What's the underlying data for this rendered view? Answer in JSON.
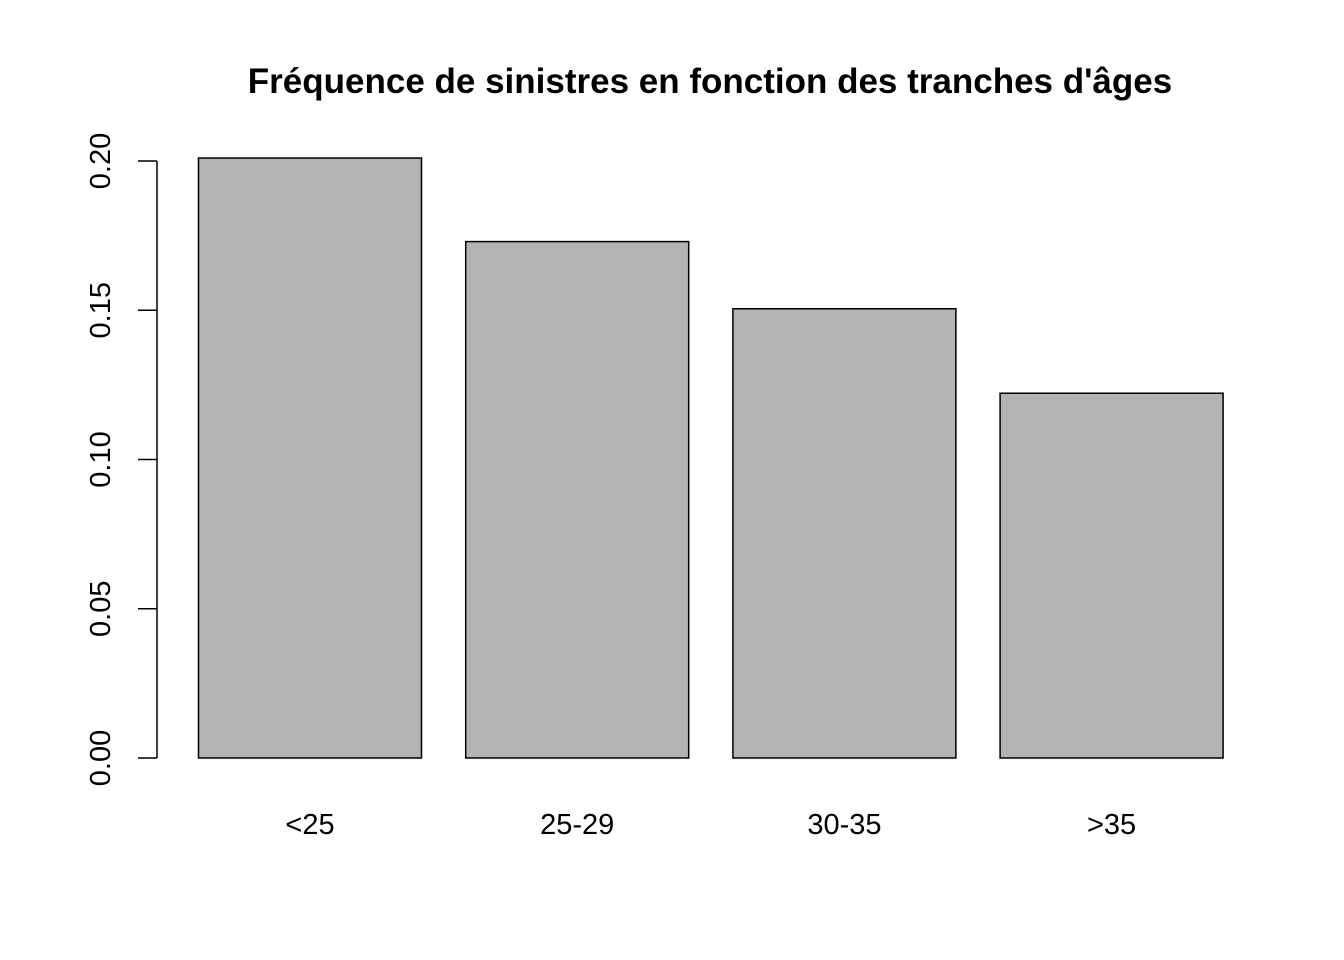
{
  "chart_data": {
    "type": "bar",
    "title": "Fréquence de sinistres en fonction des tranches d'âges",
    "xlabel": "",
    "ylabel": "",
    "categories": [
      "<25",
      "25-29",
      "30-35",
      ">35"
    ],
    "values": [
      0.201,
      0.173,
      0.1505,
      0.1222
    ],
    "ylim": [
      0,
      0.2
    ],
    "yticks": [
      "0.00",
      "0.05",
      "0.10",
      "0.15",
      "0.20"
    ],
    "grid": false,
    "legend": "none",
    "bar_fill": "#b3b3b3",
    "bar_stroke": "#000000"
  }
}
